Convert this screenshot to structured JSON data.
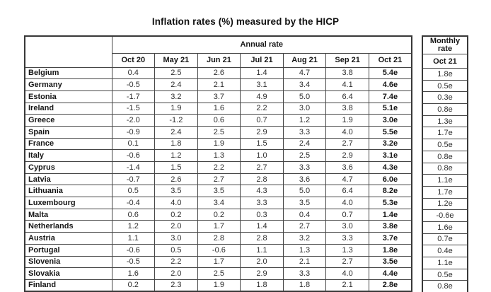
{
  "title": "Inflation rates (%) measured by the HICP",
  "table": {
    "annual_rate_label": "Annual rate",
    "monthly_rate_label": "Monthly rate",
    "monthly_month": "Oct 21",
    "months": [
      "Oct 20",
      "May 21",
      "Jun 21",
      "Jul 21",
      "Aug 21",
      "Sep 21",
      "Oct 21"
    ],
    "rows": [
      {
        "country": "Belgium",
        "values": [
          "0.4",
          "2.5",
          "2.6",
          "1.4",
          "4.7",
          "3.8",
          "5.4e"
        ],
        "monthly": "1.8e"
      },
      {
        "country": "Germany",
        "values": [
          "-0.5",
          "2.4",
          "2.1",
          "3.1",
          "3.4",
          "4.1",
          "4.6e"
        ],
        "monthly": "0.5e"
      },
      {
        "country": "Estonia",
        "values": [
          "-1.7",
          "3.2",
          "3.7",
          "4.9",
          "5.0",
          "6.4",
          "7.4e"
        ],
        "monthly": "0.3e"
      },
      {
        "country": "Ireland",
        "values": [
          "-1.5",
          "1.9",
          "1.6",
          "2.2",
          "3.0",
          "3.8",
          "5.1e"
        ],
        "monthly": "0.8e"
      },
      {
        "country": "Greece",
        "values": [
          "-2.0",
          "-1.2",
          "0.6",
          "0.7",
          "1.2",
          "1.9",
          "3.0e"
        ],
        "monthly": "1.3e"
      },
      {
        "country": "Spain",
        "values": [
          "-0.9",
          "2.4",
          "2.5",
          "2.9",
          "3.3",
          "4.0",
          "5.5e"
        ],
        "monthly": "1.7e"
      },
      {
        "country": "France",
        "values": [
          "0.1",
          "1.8",
          "1.9",
          "1.5",
          "2.4",
          "2.7",
          "3.2e"
        ],
        "monthly": "0.5e"
      },
      {
        "country": "Italy",
        "values": [
          "-0.6",
          "1.2",
          "1.3",
          "1.0",
          "2.5",
          "2.9",
          "3.1e"
        ],
        "monthly": "0.8e"
      },
      {
        "country": "Cyprus",
        "values": [
          "-1.4",
          "1.5",
          "2.2",
          "2.7",
          "3.3",
          "3.6",
          "4.3e"
        ],
        "monthly": "0.8e"
      },
      {
        "country": "Latvia",
        "values": [
          "-0.7",
          "2.6",
          "2.7",
          "2.8",
          "3.6",
          "4.7",
          "6.0e"
        ],
        "monthly": "1.1e"
      },
      {
        "country": "Lithuania",
        "values": [
          "0.5",
          "3.5",
          "3.5",
          "4.3",
          "5.0",
          "6.4",
          "8.2e"
        ],
        "monthly": "1.7e"
      },
      {
        "country": "Luxembourg",
        "values": [
          "-0.4",
          "4.0",
          "3.4",
          "3.3",
          "3.5",
          "4.0",
          "5.3e"
        ],
        "monthly": "1.2e"
      },
      {
        "country": "Malta",
        "values": [
          "0.6",
          "0.2",
          "0.2",
          "0.3",
          "0.4",
          "0.7",
          "1.4e"
        ],
        "monthly": "-0.6e"
      },
      {
        "country": "Netherlands",
        "values": [
          "1.2",
          "2.0",
          "1.7",
          "1.4",
          "2.7",
          "3.0",
          "3.8e"
        ],
        "monthly": "1.6e"
      },
      {
        "country": "Austria",
        "values": [
          "1.1",
          "3.0",
          "2.8",
          "2.8",
          "3.2",
          "3.3",
          "3.7e"
        ],
        "monthly": "0.7e"
      },
      {
        "country": "Portugal",
        "values": [
          "-0.6",
          "0.5",
          "-0.6",
          "1.1",
          "1.3",
          "1.3",
          "1.8e"
        ],
        "monthly": "0.4e"
      },
      {
        "country": "Slovenia",
        "values": [
          "-0.5",
          "2.2",
          "1.7",
          "2.0",
          "2.1",
          "2.7",
          "3.5e"
        ],
        "monthly": "1.1e"
      },
      {
        "country": "Slovakia",
        "values": [
          "1.6",
          "2.0",
          "2.5",
          "2.9",
          "3.3",
          "4.0",
          "4.4e"
        ],
        "monthly": "0.5e"
      },
      {
        "country": "Finland",
        "values": [
          "0.2",
          "2.3",
          "1.9",
          "1.8",
          "1.8",
          "2.1",
          "2.8e"
        ],
        "monthly": "0.8e"
      }
    ]
  }
}
